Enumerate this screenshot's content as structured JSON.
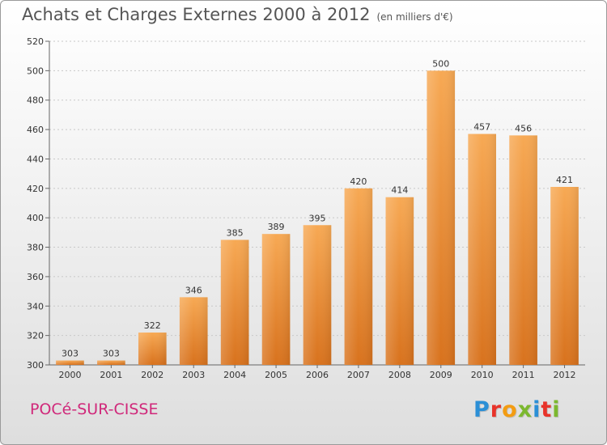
{
  "title": "Achats et Charges Externes 2000 à 2012",
  "subtitle": "(en milliers d'€)",
  "commune": "POCé-SUR-CISSE",
  "logo": {
    "letters": [
      "P",
      "r",
      "o",
      "x",
      "i",
      "t",
      "i"
    ],
    "colors": [
      "#2b8fd6",
      "#e8332a",
      "#f39c12",
      "#7cb82f",
      "#2b8fd6",
      "#e8332a",
      "#7cb82f"
    ]
  },
  "colors": {
    "bar_top": "#f7a954",
    "bar_bottom": "#d8721d",
    "commune": "#d0287a"
  },
  "chart_data": {
    "type": "bar",
    "title": "Achats et Charges Externes 2000 à 2012",
    "subtitle": "(en milliers d'€)",
    "xlabel": "",
    "ylabel": "",
    "categories": [
      "2000",
      "2001",
      "2002",
      "2003",
      "2004",
      "2005",
      "2006",
      "2007",
      "2008",
      "2009",
      "2010",
      "2011",
      "2012"
    ],
    "values": [
      303,
      303,
      322,
      346,
      385,
      389,
      395,
      420,
      414,
      500,
      457,
      456,
      421
    ],
    "ylim": [
      300,
      520
    ],
    "yticks": [
      300,
      320,
      340,
      360,
      380,
      400,
      420,
      440,
      460,
      480,
      500,
      520
    ],
    "grid": true,
    "legend": "none"
  }
}
